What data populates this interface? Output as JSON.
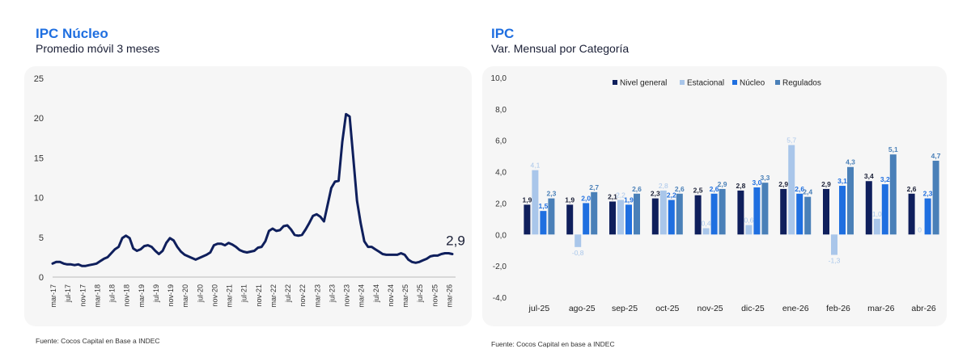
{
  "left": {
    "title": "IPC Núcleo",
    "subtitle": "Promedio móvil 3 meses",
    "source": "Fuente: Cocos Capital en Base a INDEC"
  },
  "right": {
    "title": "IPC",
    "subtitle": "Var. Mensual por Categoría",
    "source": "Fuente: Cocos Capital en base a INDEC"
  },
  "colors": {
    "line": "#0f1f5c",
    "nivel_general": "#0f1f5c",
    "estacional": "#a9c6ea",
    "nucleo": "#1f6fe0",
    "regulados": "#4a80b8"
  },
  "chart_data": [
    {
      "type": "line",
      "ylim": [
        0,
        25
      ],
      "yticks": [
        "0",
        "5",
        "10",
        "15",
        "20",
        "25"
      ],
      "xticks": [
        "mar-17",
        "jul-17",
        "nov-17",
        "mar-18",
        "jul-18",
        "nov-18",
        "mar-19",
        "jul-19",
        "nov-19",
        "mar-20",
        "jul-20",
        "nov-20",
        "mar-21",
        "jul-21",
        "nov-21",
        "mar-22",
        "jul-22",
        "nov-22",
        "mar-23",
        "jul-23",
        "nov-23",
        "mar-24",
        "jul-24",
        "nov-24",
        "mar-25",
        "jul-25",
        "nov-25",
        "mar-26"
      ],
      "end_label": "2,9",
      "x": [
        "2017-03",
        "2017-04",
        "2017-05",
        "2017-06",
        "2017-07",
        "2017-08",
        "2017-09",
        "2017-10",
        "2017-11",
        "2017-12",
        "2018-01",
        "2018-02",
        "2018-03",
        "2018-04",
        "2018-05",
        "2018-06",
        "2018-07",
        "2018-08",
        "2018-09",
        "2018-10",
        "2018-11",
        "2018-12",
        "2019-01",
        "2019-02",
        "2019-03",
        "2019-04",
        "2019-05",
        "2019-06",
        "2019-07",
        "2019-08",
        "2019-09",
        "2019-10",
        "2019-11",
        "2019-12",
        "2020-01",
        "2020-02",
        "2020-03",
        "2020-04",
        "2020-05",
        "2020-06",
        "2020-07",
        "2020-08",
        "2020-09",
        "2020-10",
        "2020-11",
        "2020-12",
        "2021-01",
        "2021-02",
        "2021-03",
        "2021-04",
        "2021-05",
        "2021-06",
        "2021-07",
        "2021-08",
        "2021-09",
        "2021-10",
        "2021-11",
        "2021-12",
        "2022-01",
        "2022-02",
        "2022-03",
        "2022-04",
        "2022-05",
        "2022-06",
        "2022-07",
        "2022-08",
        "2022-09",
        "2022-10",
        "2022-11",
        "2022-12",
        "2023-01",
        "2023-02",
        "2023-03",
        "2023-04",
        "2023-05",
        "2023-06",
        "2023-07",
        "2023-08",
        "2023-09",
        "2023-10",
        "2023-11",
        "2023-12",
        "2024-01",
        "2024-02",
        "2024-03",
        "2024-04",
        "2024-05",
        "2024-06",
        "2024-07",
        "2024-08",
        "2024-09",
        "2024-10",
        "2024-11",
        "2024-12",
        "2025-01",
        "2025-02",
        "2025-03",
        "2025-04",
        "2025-05",
        "2025-06",
        "2025-07",
        "2025-08",
        "2025-09",
        "2025-10",
        "2025-11",
        "2025-12",
        "2026-01",
        "2026-02",
        "2026-03",
        "2026-04"
      ],
      "values": [
        1.7,
        1.9,
        1.9,
        1.7,
        1.6,
        1.6,
        1.5,
        1.6,
        1.4,
        1.4,
        1.5,
        1.6,
        1.7,
        2.0,
        2.3,
        2.5,
        3.0,
        3.5,
        3.8,
        4.9,
        5.2,
        4.9,
        3.6,
        3.3,
        3.5,
        3.9,
        4.0,
        3.8,
        3.3,
        2.9,
        3.3,
        4.3,
        4.9,
        4.6,
        3.8,
        3.2,
        2.8,
        2.6,
        2.4,
        2.2,
        2.4,
        2.6,
        2.8,
        3.1,
        4.0,
        4.2,
        4.2,
        4.0,
        4.3,
        4.1,
        3.8,
        3.4,
        3.2,
        3.1,
        3.2,
        3.3,
        3.7,
        3.8,
        4.5,
        5.8,
        6.1,
        5.8,
        5.9,
        6.4,
        6.5,
        6.0,
        5.3,
        5.2,
        5.3,
        6.0,
        6.8,
        7.7,
        7.9,
        7.6,
        7.0,
        9.1,
        11.2,
        12.0,
        12.1,
        17.0,
        20.5,
        20.2,
        15.0,
        9.6,
        6.8,
        4.5,
        3.8,
        3.8,
        3.5,
        3.2,
        2.9,
        2.8,
        2.8,
        2.8,
        2.8,
        3.0,
        2.8,
        2.2,
        1.9,
        1.8,
        1.9,
        2.1,
        2.3,
        2.6,
        2.7,
        2.7,
        2.9,
        3.0,
        3.0,
        2.9
      ]
    },
    {
      "type": "bar",
      "ylim": [
        -4,
        10
      ],
      "yticks": [
        "-4,0",
        "-2,0",
        "0,0",
        "2,0",
        "4,0",
        "6,0",
        "8,0",
        "10,0"
      ],
      "categories": [
        "jul-25",
        "ago-25",
        "sep-25",
        "oct-25",
        "nov-25",
        "dic-25",
        "ene-26",
        "feb-26",
        "mar-26",
        "abr-26"
      ],
      "legend_position": "top",
      "series": [
        {
          "name": "Nivel general",
          "values": [
            1.9,
            1.9,
            2.1,
            2.3,
            2.5,
            2.8,
            2.9,
            2.9,
            3.4,
            2.6
          ],
          "labels": [
            "1,9",
            "1,9",
            "2,1",
            "2,3",
            "2,5",
            "2,8",
            "2,9",
            "2,9",
            "3,4",
            "2,6"
          ]
        },
        {
          "name": "Estacional",
          "values": [
            4.1,
            -0.8,
            2.2,
            2.8,
            0.4,
            0.6,
            5.7,
            -1.3,
            1.0,
            0.0
          ],
          "labels": [
            "4,1",
            "-0,8",
            "2,2",
            "2,8",
            "0,4",
            "0,6",
            "5,7",
            "-1,3",
            "1,0",
            "0"
          ]
        },
        {
          "name": "Núcleo",
          "values": [
            1.5,
            2.0,
            1.9,
            2.2,
            2.6,
            3.0,
            2.6,
            3.1,
            3.2,
            2.3
          ],
          "labels": [
            "1,5",
            "2,0",
            "1,9",
            "2,2",
            "2,6",
            "3,0",
            "2,6",
            "3,1",
            "3,2",
            "2,3"
          ]
        },
        {
          "name": "Regulados",
          "values": [
            2.3,
            2.7,
            2.6,
            2.6,
            2.9,
            3.3,
            2.4,
            4.3,
            5.1,
            4.7
          ],
          "labels": [
            "2,3",
            "2,7",
            "2,6",
            "2,6",
            "2,9",
            "3,3",
            "2,4",
            "4,3",
            "5,1",
            "4,7"
          ]
        }
      ]
    }
  ]
}
